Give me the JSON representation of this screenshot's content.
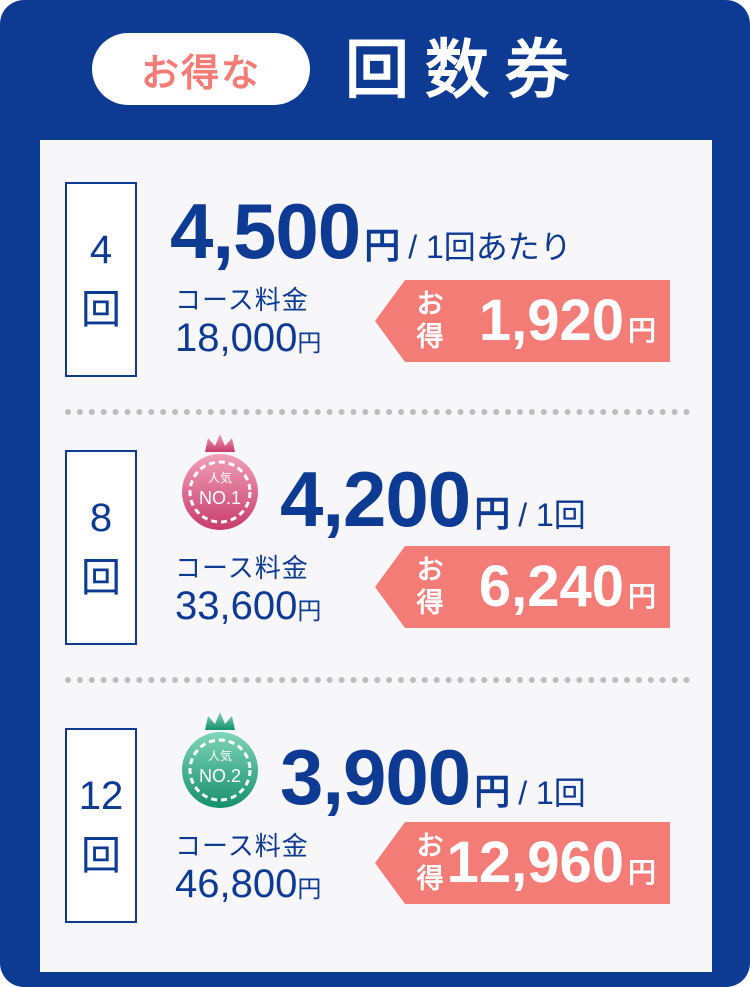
{
  "header": {
    "pill": "お得な",
    "title": "回数券"
  },
  "colors": {
    "navy": "#0d3a93",
    "salmon": "#f37d76",
    "no1": "#d9567f",
    "no2": "#1e9f7c"
  },
  "rows": [
    {
      "count": "4",
      "unit": "回",
      "price": "4,500",
      "yen": "円",
      "per": "/ 1回あたり",
      "course_label": "コース料金",
      "course": "18,000",
      "course_yen": "円",
      "otoku": "お得",
      "saving": "1,920",
      "saving_yen": "円"
    },
    {
      "count": "8",
      "unit": "回",
      "badge_top": "人気",
      "badge": "NO.1",
      "price": "4,200",
      "yen": "円",
      "per": "/ 1回",
      "course_label": "コース料金",
      "course": "33,600",
      "course_yen": "円",
      "otoku": "お得",
      "saving": "6,240",
      "saving_yen": "円"
    },
    {
      "count": "12",
      "unit": "回",
      "badge_top": "人気",
      "badge": "NO.2",
      "price": "3,900",
      "yen": "円",
      "per": "/ 1回",
      "course_label": "コース料金",
      "course": "46,800",
      "course_yen": "円",
      "otoku": "お得",
      "saving": "12,960",
      "saving_yen": "円"
    }
  ]
}
